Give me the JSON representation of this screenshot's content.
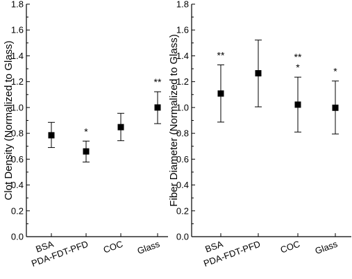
{
  "chart_data": [
    {
      "type": "scatter",
      "ylabel": "Clot Density (Normalized to Glass)",
      "xlabel": "",
      "categories": [
        "BSA",
        "PDA-FDT-PFD",
        "COC",
        "Glass"
      ],
      "values": [
        0.785,
        0.66,
        0.848,
        1.0
      ],
      "error_upper": [
        0.885,
        0.74,
        0.955,
        1.122
      ],
      "error_lower": [
        0.69,
        0.578,
        0.743,
        0.875
      ],
      "annotations": [
        "",
        "*",
        "",
        "**"
      ],
      "ylim": [
        0.0,
        1.8
      ],
      "yticks": [
        "0.0",
        "0.2",
        "0.4",
        "0.6",
        "0.8",
        "1.0",
        "1.2",
        "1.4",
        "1.6",
        "1.8"
      ],
      "grid": false,
      "marker": "square"
    },
    {
      "type": "scatter",
      "ylabel": "Fiber Diameter (Normalized to Glass)",
      "xlabel": "",
      "categories": [
        "BSA",
        "PDA-FDT-PFD",
        "COC",
        "Glass"
      ],
      "values": [
        1.108,
        1.265,
        1.022,
        0.998
      ],
      "error_upper": [
        1.33,
        1.522,
        1.235,
        1.205
      ],
      "error_lower": [
        0.887,
        1.005,
        0.81,
        0.795
      ],
      "annotations": [
        "**",
        "",
        "**\n*",
        "*"
      ],
      "ylim": [
        0.0,
        1.8
      ],
      "yticks": [
        "0.0",
        "0.2",
        "0.4",
        "0.6",
        "0.8",
        "1.0",
        "1.2",
        "1.4",
        "1.6",
        "1.8"
      ],
      "grid": false,
      "marker": "square"
    }
  ]
}
